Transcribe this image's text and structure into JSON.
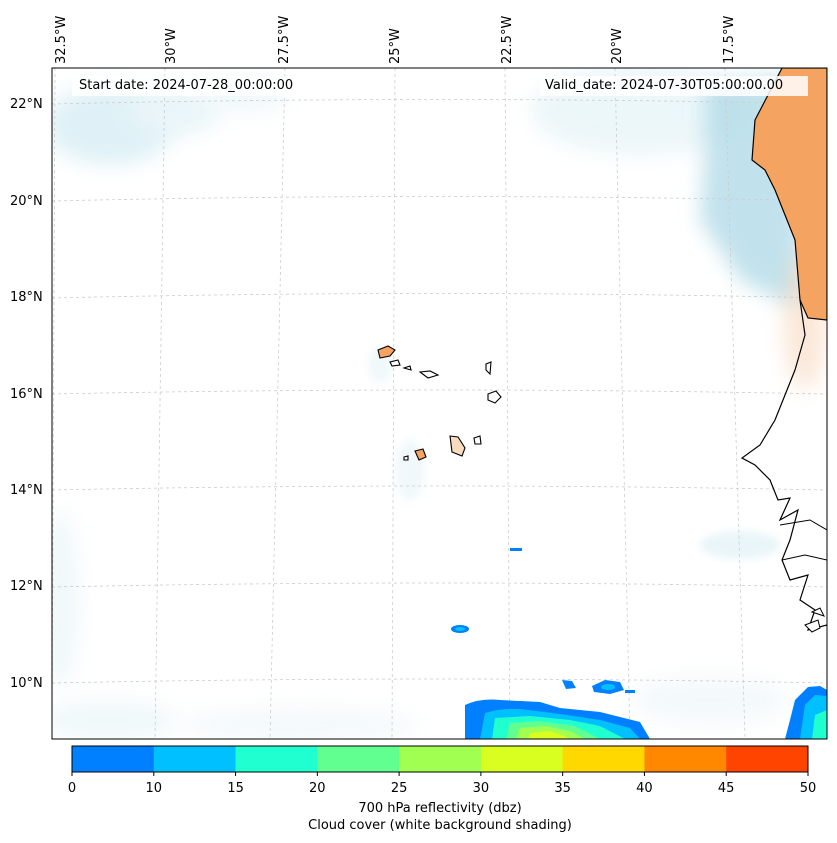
{
  "map": {
    "lon_labels": [
      "32.5°W",
      "30°W",
      "27.5°W",
      "25°W",
      "22.5°W",
      "20°W",
      "17.5°W"
    ],
    "lat_labels": [
      "22°N",
      "20°N",
      "18°N",
      "16°N",
      "14°N",
      "12°N",
      "10°N"
    ],
    "start_date": "Start date: 2024-07-28_00:00:00",
    "valid_date": "Valid_date: 2024-07-30T05:00:00.00",
    "colors": {
      "land": "#f4a460",
      "cloud": "#add8e6",
      "gridline": "#cccccc",
      "coastline": "#000000"
    }
  },
  "colorbar": {
    "ticks": [
      "0",
      "10",
      "15",
      "20",
      "25",
      "30",
      "35",
      "40",
      "45",
      "50"
    ],
    "colors": [
      "#0080ff",
      "#00c0ff",
      "#20ffd0",
      "#60ff90",
      "#a0ff50",
      "#d8ff20",
      "#ffd800",
      "#ff8800",
      "#ff4400"
    ],
    "label1": "700 hPa reflectivity (dbz)",
    "label2": "Cloud cover (white background shading)"
  }
}
